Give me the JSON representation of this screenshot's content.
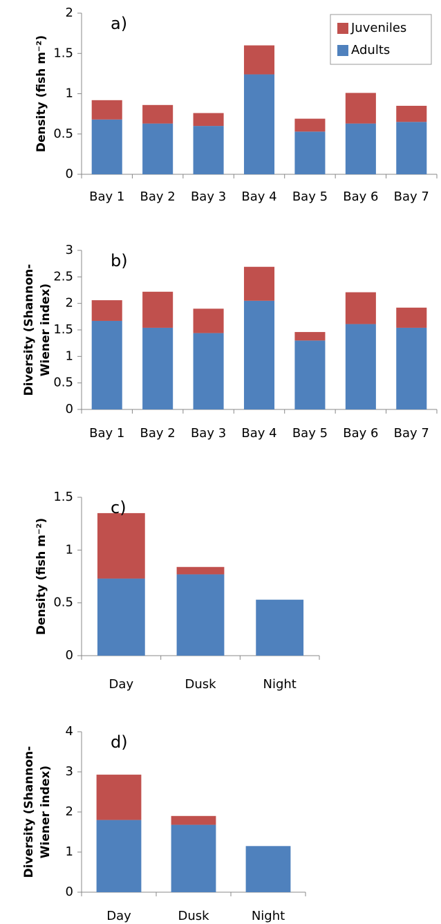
{
  "chart_data": [
    {
      "type": "bar",
      "stacked": true,
      "panel_label": "a)",
      "ylabel": "Density (fish m⁻²)",
      "categories": [
        "Bay 1",
        "Bay 2",
        "Bay 3",
        "Bay 4",
        "Bay 5",
        "Bay 6",
        "Bay 7"
      ],
      "series": [
        {
          "name": "Adults",
          "color": "#4f81bd",
          "values": [
            0.68,
            0.63,
            0.6,
            1.24,
            0.53,
            0.63,
            0.65
          ]
        },
        {
          "name": "Juveniles",
          "color": "#c0504d",
          "values": [
            0.24,
            0.23,
            0.16,
            0.36,
            0.16,
            0.38,
            0.2
          ]
        }
      ],
      "ylim": [
        0,
        2
      ],
      "yticks": [
        0,
        0.5,
        1,
        1.5,
        2
      ],
      "legend": "upper right"
    },
    {
      "type": "bar",
      "stacked": true,
      "panel_label": "b)",
      "ylabel_lines": [
        "Diversity (Shannon-",
        "Wiener index)"
      ],
      "categories": [
        "Bay 1",
        "Bay 2",
        "Bay 3",
        "Bay 4",
        "Bay 5",
        "Bay 6",
        "Bay 7"
      ],
      "series": [
        {
          "name": "Adults",
          "color": "#4f81bd",
          "values": [
            1.67,
            1.54,
            1.44,
            2.05,
            1.3,
            1.61,
            1.54
          ]
        },
        {
          "name": "Juveniles",
          "color": "#c0504d",
          "values": [
            0.39,
            0.68,
            0.46,
            0.64,
            0.16,
            0.6,
            0.38
          ]
        }
      ],
      "ylim": [
        0,
        3
      ],
      "yticks": [
        0,
        0.5,
        1,
        1.5,
        2,
        2.5,
        3
      ]
    },
    {
      "type": "bar",
      "stacked": true,
      "panel_label": "c)",
      "ylabel": "Density (fish m⁻²)",
      "categories": [
        "Day",
        "Dusk",
        "Night"
      ],
      "series": [
        {
          "name": "Adults",
          "color": "#4f81bd",
          "values": [
            0.73,
            0.77,
            0.53
          ]
        },
        {
          "name": "Juveniles",
          "color": "#c0504d",
          "values": [
            0.62,
            0.07,
            0
          ]
        }
      ],
      "ylim": [
        0,
        1.5
      ],
      "yticks": [
        0,
        0.5,
        1,
        1.5
      ]
    },
    {
      "type": "bar",
      "stacked": true,
      "panel_label": "d)",
      "ylabel_lines": [
        "Diversity (Shannon-",
        "Wiener index)"
      ],
      "categories": [
        "Day",
        "Dusk",
        "Night"
      ],
      "series": [
        {
          "name": "Adults",
          "color": "#4f81bd",
          "values": [
            1.8,
            1.68,
            1.15
          ]
        },
        {
          "name": "Juveniles",
          "color": "#c0504d",
          "values": [
            1.13,
            0.22,
            0
          ]
        }
      ],
      "ylim": [
        0,
        4
      ],
      "yticks": [
        0,
        1,
        2,
        3,
        4
      ]
    }
  ]
}
